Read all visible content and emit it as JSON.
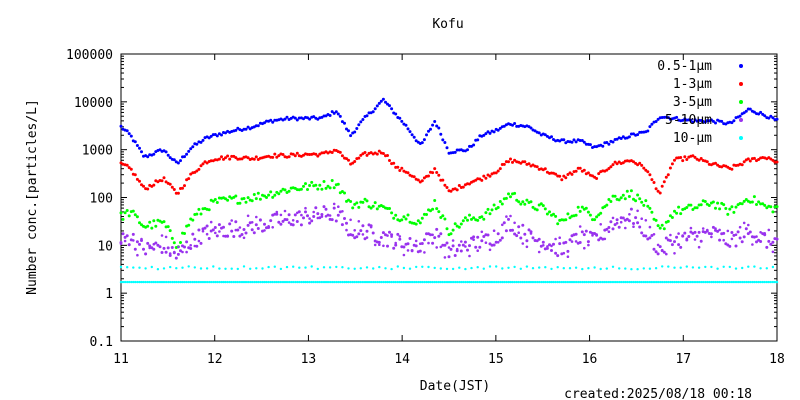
{
  "chart_data": {
    "type": "scatter",
    "title": "Kofu",
    "xlabel": "Date(JST)",
    "ylabel": "Number conc.[particles/L]",
    "y_scale": "log",
    "xlim": [
      11,
      18
    ],
    "ylim": [
      0.1,
      100000
    ],
    "x_ticks": [
      "11",
      "12",
      "13",
      "14",
      "15",
      "16",
      "17",
      "18"
    ],
    "y_ticks": [
      "0.1",
      "1",
      "10",
      "100",
      "1000",
      "10000",
      "100000"
    ],
    "legend_position": "top-right",
    "series": [
      {
        "name": "0.5-1μm",
        "color": "#0000ff",
        "x": [
          11.0,
          11.1,
          11.25,
          11.45,
          11.6,
          11.75,
          11.9,
          12.0,
          12.2,
          12.4,
          12.6,
          12.8,
          13.0,
          13.15,
          13.3,
          13.45,
          13.6,
          13.8,
          13.95,
          14.05,
          14.2,
          14.35,
          14.5,
          14.7,
          14.85,
          15.0,
          15.15,
          15.35,
          15.5,
          15.7,
          15.9,
          16.05,
          16.25,
          16.45,
          16.6,
          16.75,
          16.9,
          17.1,
          17.3,
          17.5,
          17.7,
          17.9,
          18.0
        ],
        "y": [
          3000,
          2000,
          700,
          1000,
          500,
          1100,
          1700,
          2000,
          2500,
          3000,
          4000,
          4500,
          4500,
          4600,
          6500,
          2000,
          4500,
          11000,
          5000,
          3000,
          1200,
          4000,
          900,
          1000,
          2000,
          2500,
          3500,
          3000,
          2000,
          1500,
          1500,
          1100,
          1500,
          2000,
          2300,
          5000,
          4500,
          4000,
          4000,
          3500,
          7000,
          5000,
          4000
        ]
      },
      {
        "name": "1-3μm",
        "color": "#ff0000",
        "x": [
          11.0,
          11.1,
          11.25,
          11.45,
          11.6,
          11.75,
          11.9,
          12.0,
          12.2,
          12.4,
          12.6,
          12.8,
          13.0,
          13.15,
          13.3,
          13.45,
          13.6,
          13.8,
          13.95,
          14.05,
          14.2,
          14.35,
          14.5,
          14.7,
          14.85,
          15.0,
          15.15,
          15.35,
          15.5,
          15.7,
          15.9,
          16.05,
          16.25,
          16.45,
          16.6,
          16.75,
          16.9,
          17.1,
          17.3,
          17.5,
          17.7,
          17.9,
          18.0
        ],
        "y": [
          500,
          400,
          150,
          250,
          120,
          300,
          550,
          650,
          700,
          650,
          750,
          750,
          800,
          800,
          1000,
          500,
          800,
          900,
          400,
          350,
          200,
          400,
          130,
          200,
          250,
          350,
          600,
          500,
          400,
          250,
          400,
          250,
          500,
          600,
          400,
          120,
          600,
          700,
          500,
          400,
          600,
          700,
          550
        ]
      },
      {
        "name": "3-5μm",
        "color": "#00ff00",
        "x": [
          11.0,
          11.1,
          11.25,
          11.45,
          11.6,
          11.75,
          11.9,
          12.0,
          12.2,
          12.4,
          12.6,
          12.8,
          13.0,
          13.15,
          13.3,
          13.45,
          13.6,
          13.8,
          13.95,
          14.05,
          14.2,
          14.35,
          14.5,
          14.7,
          14.85,
          15.0,
          15.15,
          15.35,
          15.5,
          15.7,
          15.9,
          16.05,
          16.25,
          16.45,
          16.6,
          16.75,
          16.9,
          17.1,
          17.3,
          17.5,
          17.7,
          17.9,
          18.0
        ],
        "y": [
          40,
          50,
          25,
          30,
          10,
          35,
          60,
          80,
          90,
          100,
          120,
          150,
          170,
          180,
          200,
          70,
          80,
          60,
          40,
          40,
          30,
          80,
          20,
          35,
          40,
          60,
          120,
          70,
          60,
          30,
          60,
          40,
          100,
          120,
          70,
          20,
          50,
          60,
          80,
          50,
          100,
          60,
          60
        ]
      },
      {
        "name": "5-10μm",
        "color": "#9933ee",
        "x": [
          11.0,
          11.1,
          11.25,
          11.45,
          11.6,
          11.75,
          11.9,
          12.0,
          12.2,
          12.4,
          12.6,
          12.8,
          13.0,
          13.15,
          13.3,
          13.45,
          13.6,
          13.8,
          13.95,
          14.05,
          14.2,
          14.35,
          14.5,
          14.7,
          14.85,
          15.0,
          15.15,
          15.35,
          15.5,
          15.7,
          15.9,
          16.05,
          16.25,
          16.45,
          16.6,
          16.75,
          16.9,
          17.1,
          17.3,
          17.5,
          17.7,
          17.9,
          18.0
        ],
        "y": [
          12,
          15,
          8,
          10,
          6,
          12,
          18,
          20,
          22,
          25,
          30,
          35,
          40,
          45,
          45,
          20,
          20,
          15,
          12,
          10,
          10,
          18,
          7,
          10,
          12,
          15,
          30,
          15,
          12,
          8,
          15,
          12,
          30,
          40,
          20,
          8,
          12,
          15,
          18,
          12,
          20,
          12,
          12
        ]
      },
      {
        "name": "10-μm",
        "color": "#00ffff",
        "x": [
          11.0,
          11.5,
          12.0,
          12.5,
          13.0,
          13.5,
          14.0,
          14.5,
          15.0,
          15.5,
          16.0,
          16.5,
          17.0,
          17.5,
          18.0
        ],
        "y": [
          1.7,
          1.7,
          1.7,
          1.7,
          1.7,
          1.7,
          1.7,
          1.7,
          1.7,
          1.7,
          1.7,
          1.7,
          1.7,
          1.7,
          1.7
        ]
      }
    ]
  },
  "footer": {
    "created_label": "created:2025/08/18 00:18"
  }
}
